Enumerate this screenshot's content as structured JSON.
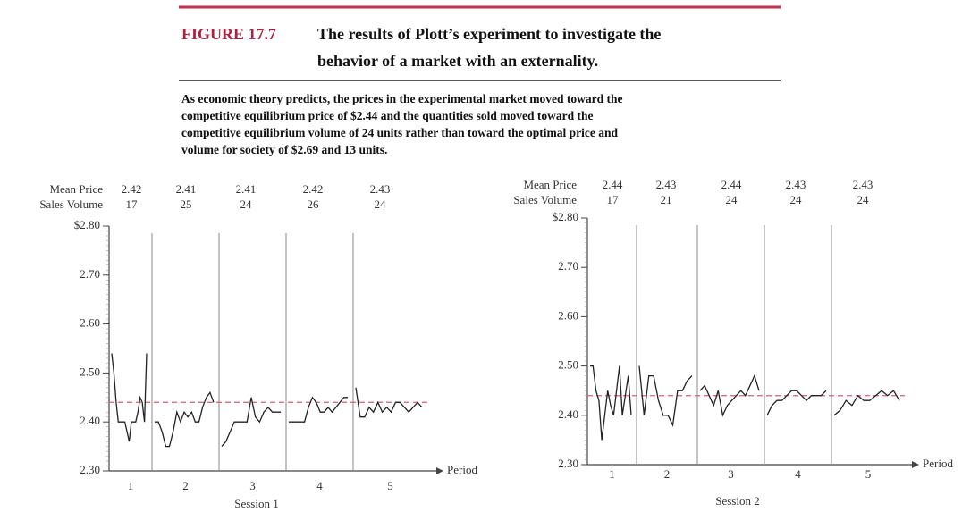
{
  "figure": {
    "label": "FIGURE 17.7",
    "title_lines": [
      "The results of Plott’s experiment to investigate the",
      "behavior of a market with an externality."
    ],
    "caption_lines": [
      "As economic theory predicts, the prices in the experimental market moved toward the",
      "competitive equilibrium price of $2.44 and the quantities sold moved toward the",
      "competitive equilibrium volume of 24 units rather than toward the optimal price and",
      "volume for society of $2.69 and 13 units."
    ]
  },
  "chart_data": [
    {
      "type": "line",
      "xlabel": "Session 1",
      "axis_label": "Period",
      "mean_price_label": "Mean Price",
      "volume_label": "Sales Volume",
      "ylim": [
        2.3,
        2.8
      ],
      "yticks": [
        {
          "value": 2.3,
          "label": "2.30"
        },
        {
          "value": 2.4,
          "label": "2.40"
        },
        {
          "value": 2.5,
          "label": "2.50"
        },
        {
          "value": 2.6,
          "label": "2.60"
        },
        {
          "value": 2.7,
          "label": "2.70"
        },
        {
          "value": 2.8,
          "label": "$2.80"
        }
      ],
      "equilibrium": 2.44,
      "color": "#222222",
      "equilibrium_color": "#d0607a",
      "periods": [
        {
          "label": "1",
          "mean_price": 2.42,
          "volume": 17,
          "prices": [
            2.54,
            2.5,
            2.44,
            2.4,
            2.4,
            2.4,
            2.4,
            2.38,
            2.36,
            2.4,
            2.4,
            2.4,
            2.42,
            2.45,
            2.44,
            2.4,
            2.54
          ]
        },
        {
          "label": "2",
          "mean_price": 2.41,
          "volume": 25,
          "prices": [
            2.4,
            2.4,
            2.38,
            2.35,
            2.35,
            2.38,
            2.42,
            2.4,
            2.42,
            2.41,
            2.42,
            2.4,
            2.4,
            2.43,
            2.45,
            2.46,
            2.44
          ]
        },
        {
          "label": "3",
          "mean_price": 2.41,
          "volume": 24,
          "prices": [
            2.35,
            2.36,
            2.38,
            2.4,
            2.4,
            2.4,
            2.4,
            2.45,
            2.41,
            2.4,
            2.42,
            2.43,
            2.42,
            2.42,
            2.42
          ]
        },
        {
          "label": "4",
          "mean_price": 2.42,
          "volume": 26,
          "prices": [
            2.4,
            2.4,
            2.4,
            2.4,
            2.4,
            2.43,
            2.45,
            2.44,
            2.42,
            2.42,
            2.43,
            2.42,
            2.43,
            2.44,
            2.45,
            2.45
          ]
        },
        {
          "label": "5",
          "mean_price": 2.43,
          "volume": 24,
          "prices": [
            2.47,
            2.41,
            2.41,
            2.43,
            2.42,
            2.44,
            2.42,
            2.43,
            2.42,
            2.44,
            2.44,
            2.43,
            2.42,
            2.43,
            2.44,
            2.43
          ]
        }
      ]
    },
    {
      "type": "line",
      "xlabel": "Session 2",
      "axis_label": "Period",
      "mean_price_label": "Mean Price",
      "volume_label": "Sales Volume",
      "ylim": [
        2.3,
        2.8
      ],
      "yticks": [
        {
          "value": 2.3,
          "label": "2.30"
        },
        {
          "value": 2.4,
          "label": "2.40"
        },
        {
          "value": 2.5,
          "label": "2.50"
        },
        {
          "value": 2.6,
          "label": "2.60"
        },
        {
          "value": 2.7,
          "label": "2.70"
        },
        {
          "value": 2.8,
          "label": "$2.80"
        }
      ],
      "equilibrium": 2.44,
      "color": "#222222",
      "equilibrium_color": "#d0607a",
      "periods": [
        {
          "label": "1",
          "mean_price": 2.44,
          "volume": 17,
          "prices": [
            2.5,
            2.5,
            2.45,
            2.43,
            2.35,
            2.4,
            2.45,
            2.42,
            2.4,
            2.45,
            2.5,
            2.4,
            2.44,
            2.48,
            2.4
          ]
        },
        {
          "label": "2",
          "mean_price": 2.43,
          "volume": 21,
          "prices": [
            2.5,
            2.4,
            2.48,
            2.48,
            2.43,
            2.4,
            2.4,
            2.38,
            2.45,
            2.45,
            2.47,
            2.48
          ]
        },
        {
          "label": "3",
          "mean_price": 2.44,
          "volume": 24,
          "prices": [
            2.45,
            2.46,
            2.44,
            2.42,
            2.45,
            2.4,
            2.42,
            2.43,
            2.44,
            2.45,
            2.44,
            2.46,
            2.48,
            2.45
          ]
        },
        {
          "label": "4",
          "mean_price": 2.43,
          "volume": 24,
          "prices": [
            2.4,
            2.42,
            2.43,
            2.43,
            2.44,
            2.45,
            2.45,
            2.44,
            2.43,
            2.44,
            2.44,
            2.44,
            2.45
          ]
        },
        {
          "label": "5",
          "mean_price": 2.43,
          "volume": 24,
          "prices": [
            2.4,
            2.41,
            2.43,
            2.42,
            2.44,
            2.43,
            2.43,
            2.44,
            2.45,
            2.44,
            2.45,
            2.43
          ]
        }
      ]
    }
  ]
}
